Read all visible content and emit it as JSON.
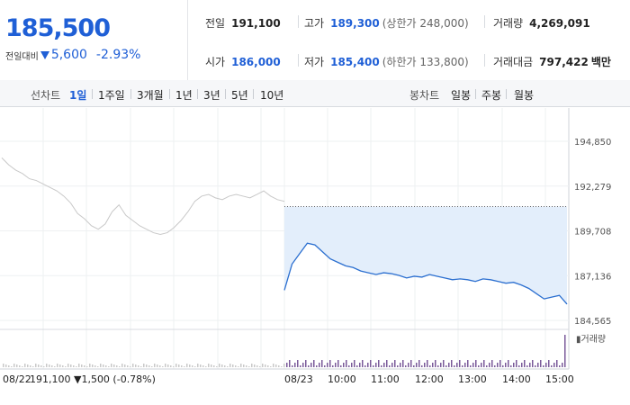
{
  "quote": {
    "price": "185,500",
    "change_label": "전일대비",
    "change": "5,600",
    "change_pct": "-2.93%",
    "prev_close_label": "전일",
    "prev_close": "191,100",
    "open_label": "시가",
    "open": "186,000",
    "high_label": "고가",
    "high": "189,300",
    "upper_limit": "(상한가 248,000)",
    "low_label": "저가",
    "low": "185,400",
    "lower_limit": "(하한가 133,800)",
    "volume_label": "거래량",
    "volume": "4,269,091",
    "amount_label": "거래대금",
    "amount": "797,422",
    "amount_unit": "백만"
  },
  "tabs": {
    "line_chart_label": "선차트",
    "line_ranges": [
      "1일",
      "1주일",
      "3개월",
      "1년",
      "3년",
      "5년",
      "10년"
    ],
    "active_range": "1일",
    "candle_chart_label": "봉차트",
    "candle_ranges": [
      "일봉",
      "주봉",
      "월봉"
    ]
  },
  "colors": {
    "accent": "#1f5fd6",
    "price_line": "#2b6fd0",
    "prev_line": "#c8c8c8",
    "fill": "#e3eefb",
    "volume": "#7a5a9a"
  },
  "chart_data": {
    "type": "line",
    "y_ticks": [
      "194,850",
      "192,279",
      "189,708",
      "187,136",
      "184,565"
    ],
    "ylim": [
      184565,
      194850
    ],
    "prev_close_value": 191100,
    "x_labels": [
      "08/23",
      "10:00",
      "11:00",
      "12:00",
      "13:00",
      "14:00",
      "15:00"
    ],
    "prev_day": {
      "date": "08/22",
      "close": "191,100",
      "change": "1,500",
      "change_pct": "(-0.78%)",
      "values": [
        193900,
        193500,
        193200,
        193000,
        192700,
        192600,
        192400,
        192200,
        192000,
        191700,
        191300,
        190700,
        190400,
        190000,
        189800,
        190100,
        190800,
        191200,
        190600,
        190300,
        190000,
        189800,
        189600,
        189500,
        189600,
        189900,
        190300,
        190800,
        191400,
        191700,
        191800,
        191600,
        191500,
        191700,
        191800,
        191700,
        191600,
        191800,
        192000,
        191700,
        191500,
        191400
      ]
    },
    "today": {
      "values": [
        186300,
        187800,
        188400,
        189000,
        188900,
        188500,
        188100,
        187900,
        187700,
        187600,
        187400,
        187300,
        187200,
        187300,
        187250,
        187150,
        187000,
        187100,
        187050,
        187200,
        187100,
        187000,
        186900,
        186950,
        186900,
        186800,
        186950,
        186900,
        186800,
        186700,
        186750,
        186600,
        186400,
        186100,
        185800,
        185900,
        186000,
        185500
      ]
    },
    "volume_label": "거래량"
  }
}
